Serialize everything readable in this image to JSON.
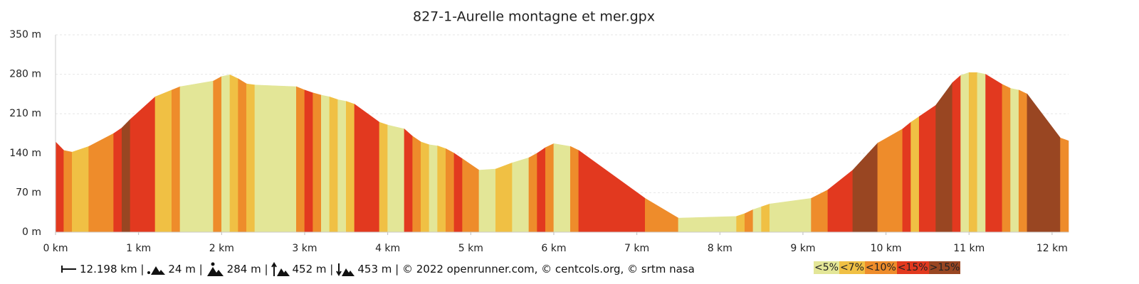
{
  "chart_data": {
    "type": "area",
    "title": "827-1-Aurelle montagne et mer.gpx",
    "x": [
      0,
      0.1,
      0.2,
      0.4,
      0.7,
      0.8,
      0.9,
      1.2,
      1.4,
      1.5,
      1.9,
      2.0,
      2.1,
      2.2,
      2.3,
      2.4,
      2.9,
      3.0,
      3.1,
      3.2,
      3.3,
      3.4,
      3.5,
      3.6,
      3.9,
      4.0,
      4.2,
      4.3,
      4.4,
      4.5,
      4.6,
      4.7,
      4.8,
      4.9,
      5.1,
      5.3,
      5.5,
      5.7,
      5.8,
      5.9,
      6.0,
      6.2,
      6.3,
      7.1,
      7.5,
      8.2,
      8.3,
      8.4,
      8.5,
      8.6,
      9.1,
      9.3,
      9.6,
      9.9,
      10.2,
      10.3,
      10.4,
      10.6,
      10.8,
      10.9,
      11.0,
      11.1,
      11.2,
      11.4,
      11.5,
      11.6,
      11.7,
      12.1,
      12.198
    ],
    "values": [
      160,
      145,
      142,
      152,
      175,
      185,
      200,
      240,
      252,
      258,
      268,
      276,
      279,
      272,
      263,
      261,
      258,
      252,
      247,
      243,
      240,
      235,
      232,
      227,
      195,
      190,
      183,
      170,
      160,
      155,
      153,
      148,
      140,
      130,
      110,
      112,
      123,
      132,
      140,
      150,
      157,
      152,
      145,
      60,
      25,
      28,
      33,
      40,
      45,
      50,
      60,
      75,
      110,
      158,
      183,
      195,
      205,
      225,
      265,
      278,
      283,
      283,
      280,
      262,
      255,
      252,
      245,
      167,
      162
    ],
    "segment_colors": [
      "#e2391f",
      "#ee8c2b",
      "#f0c044",
      "#ee8c2b",
      "#e2391f",
      "#994622",
      "#e2391f",
      "#f0c044",
      "#ee8c2b",
      "#e3e697",
      "#ee8c2b",
      "#e3e697",
      "#f0c044",
      "#ee8c2b",
      "#f0c044",
      "#e3e697",
      "#ee8c2b",
      "#e2391f",
      "#ee8c2b",
      "#e3e697",
      "#f0c044",
      "#e3e697",
      "#f0c044",
      "#e2391f",
      "#f0c044",
      "#e3e697",
      "#e2391f",
      "#ee8c2b",
      "#f0c044",
      "#e3e697",
      "#f0c044",
      "#ee8c2b",
      "#e2391f",
      "#ee8c2b",
      "#e3e697",
      "#f0c044",
      "#e3e697",
      "#ee8c2b",
      "#e2391f",
      "#ee8c2b",
      "#e3e697",
      "#ee8c2b",
      "#e2391f",
      "#ee8c2b",
      "#e3e697",
      "#f0c044",
      "#ee8c2b",
      "#e3e697",
      "#f0c044",
      "#e3e697",
      "#ee8c2b",
      "#e2391f",
      "#994622",
      "#ee8c2b",
      "#e2391f",
      "#f0c044",
      "#e2391f",
      "#994622",
      "#e2391f",
      "#e3e697",
      "#f0c044",
      "#e3e697",
      "#e2391f",
      "#ee8c2b",
      "#e3e697",
      "#ee8c2b",
      "#994622",
      "#ee8c2b"
    ],
    "xlim": [
      0,
      12.198
    ],
    "ylim": [
      0,
      350
    ],
    "xticks": [
      {
        "value": 0,
        "label": "0 km"
      },
      {
        "value": 1,
        "label": "1 km"
      },
      {
        "value": 2,
        "label": "2 km"
      },
      {
        "value": 3,
        "label": "3 km"
      },
      {
        "value": 4,
        "label": "4 km"
      },
      {
        "value": 5,
        "label": "5 km"
      },
      {
        "value": 6,
        "label": "6 km"
      },
      {
        "value": 7,
        "label": "7 km"
      },
      {
        "value": 8,
        "label": "8 km"
      },
      {
        "value": 9,
        "label": "9 km"
      },
      {
        "value": 10,
        "label": "10 km"
      },
      {
        "value": 11,
        "label": "11 km"
      },
      {
        "value": 12,
        "label": "12 km"
      }
    ],
    "yticks": [
      {
        "value": 0,
        "label": "0 m"
      },
      {
        "value": 70,
        "label": "70 m"
      },
      {
        "value": 140,
        "label": "140 m"
      },
      {
        "value": 210,
        "label": "210 m"
      },
      {
        "value": 280,
        "label": "280 m"
      },
      {
        "value": 350,
        "label": "350 m"
      }
    ],
    "grid": true,
    "legend": [
      {
        "name": "<5%",
        "color": "#e3e697"
      },
      {
        "name": "<7%",
        "color": "#f0c044"
      },
      {
        "name": "<10%",
        "color": "#ee8c2b"
      },
      {
        "name": "<15%",
        "color": "#e2391f"
      },
      {
        "name": ">15%",
        "color": "#994622"
      }
    ],
    "footer": [
      "12.198 km |",
      "24 m |",
      "284 m |",
      "452 m |",
      "453 m | © 2022 openrunner.com, © centcols.org, © srtm nasa"
    ]
  }
}
